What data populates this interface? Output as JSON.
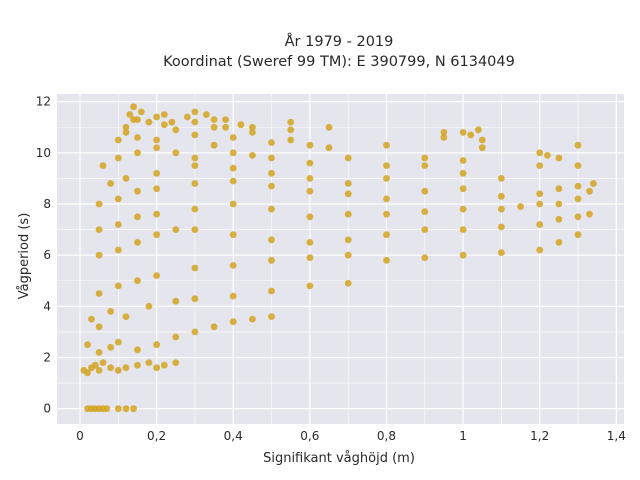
{
  "chart_data": {
    "type": "scatter",
    "title_lines": [
      "År 1979 - 2019",
      "Koordinat (Sweref 99 TM): E 390799, N 6134049"
    ],
    "xlabel": "Signifikant våghöjd (m)",
    "ylabel": "Vågperiod (s)",
    "xlim": [
      -0.06,
      1.42
    ],
    "ylim": [
      -0.6,
      12.3
    ],
    "x_ticks": [
      0,
      0.2,
      0.4,
      0.6,
      0.8,
      1,
      1.2,
      1.4
    ],
    "x_tick_labels": [
      "0",
      "0,2",
      "0,4",
      "0,6",
      "0,8",
      "1",
      "1,2",
      "1,4"
    ],
    "y_ticks": [
      0,
      2,
      4,
      6,
      8,
      10,
      12
    ],
    "y_tick_labels": [
      "0",
      "2",
      "4",
      "6",
      "8",
      "10",
      "12"
    ],
    "grid": true,
    "marker_color": "#d4a420",
    "background_color": "#e5e5ee",
    "series": [
      {
        "x": [
          0.02,
          0.03,
          0.04,
          0.05,
          0.06,
          0.07,
          0.1,
          0.12,
          0.14,
          0.01,
          0.02,
          0.03,
          0.04,
          0.05,
          0.06,
          0.08,
          0.1,
          0.12,
          0.15,
          0.18,
          0.2,
          0.22,
          0.25,
          0.02,
          0.05,
          0.08,
          0.1,
          0.15,
          0.2,
          0.25,
          0.3,
          0.35,
          0.4,
          0.45,
          0.5,
          0.03,
          0.05,
          0.08,
          0.12,
          0.18,
          0.25,
          0.3,
          0.4,
          0.5,
          0.6,
          0.7,
          0.05,
          0.1,
          0.15,
          0.2,
          0.3,
          0.4,
          0.5,
          0.6,
          0.7,
          0.8,
          0.9,
          1.0,
          1.1,
          1.2,
          1.25,
          1.3,
          0.05,
          0.1,
          0.15,
          0.2,
          0.25,
          0.3,
          0.4,
          0.5,
          0.6,
          0.7,
          0.8,
          0.9,
          1.0,
          1.1,
          1.2,
          1.25,
          1.3,
          1.33,
          0.05,
          0.1,
          0.15,
          0.2,
          0.3,
          0.4,
          0.5,
          0.6,
          0.7,
          0.8,
          0.9,
          1.0,
          1.1,
          1.15,
          1.2,
          1.25,
          1.3,
          1.33,
          1.34,
          0.05,
          0.1,
          0.15,
          0.2,
          0.3,
          0.4,
          0.5,
          0.6,
          0.7,
          0.8,
          0.9,
          1.0,
          1.1,
          1.2,
          1.25,
          1.3,
          0.08,
          0.12,
          0.2,
          0.3,
          0.4,
          0.5,
          0.6,
          0.7,
          0.8,
          0.9,
          1.0,
          1.1,
          1.2,
          1.25,
          1.3,
          0.06,
          0.1,
          0.15,
          0.2,
          0.25,
          0.3,
          0.35,
          0.4,
          0.45,
          0.5,
          0.6,
          0.7,
          0.8,
          0.9,
          1.0,
          1.05,
          1.2,
          1.22,
          1.3,
          0.1,
          0.12,
          0.15,
          0.2,
          0.25,
          0.3,
          0.35,
          0.4,
          0.45,
          0.5,
          0.55,
          0.6,
          0.65,
          0.8,
          0.95,
          1.0,
          1.04,
          0.12,
          0.14,
          0.18,
          0.22,
          0.28,
          0.3,
          0.35,
          0.38,
          0.42,
          0.55,
          0.65,
          0.95,
          1.02,
          1.05,
          0.13,
          0.15,
          0.2,
          0.24,
          0.3,
          0.33,
          0.38,
          0.45,
          0.55,
          0.14,
          0.16,
          0.22
        ],
        "y": [
          0,
          0,
          0,
          0,
          0,
          0,
          0,
          0,
          0,
          1.5,
          1.4,
          1.6,
          1.7,
          1.5,
          1.8,
          1.6,
          1.5,
          1.6,
          1.7,
          1.8,
          1.6,
          1.7,
          1.8,
          2.5,
          2.2,
          2.4,
          2.6,
          2.3,
          2.5,
          2.8,
          3.0,
          3.2,
          3.4,
          3.5,
          3.6,
          3.5,
          3.2,
          3.8,
          3.6,
          4.0,
          4.2,
          4.3,
          4.4,
          4.6,
          4.8,
          4.9,
          4.5,
          4.8,
          5.0,
          5.2,
          5.5,
          5.6,
          5.8,
          5.9,
          6.0,
          5.8,
          5.9,
          6.0,
          6.1,
          6.2,
          6.5,
          6.8,
          6.0,
          6.2,
          6.5,
          6.8,
          7.0,
          7.0,
          6.8,
          6.6,
          6.5,
          6.6,
          6.8,
          7.0,
          7.0,
          7.1,
          7.2,
          7.4,
          7.5,
          7.6,
          7.0,
          7.2,
          7.5,
          7.6,
          7.8,
          8.0,
          7.8,
          7.5,
          7.6,
          7.6,
          7.7,
          7.8,
          7.8,
          7.9,
          8.0,
          8.0,
          8.2,
          8.5,
          8.8,
          8.0,
          8.2,
          8.5,
          8.6,
          8.8,
          8.9,
          8.7,
          8.5,
          8.4,
          8.2,
          8.5,
          8.6,
          8.3,
          8.4,
          8.6,
          8.7,
          8.8,
          9.0,
          9.2,
          9.5,
          9.4,
          9.2,
          9.0,
          8.8,
          9.0,
          9.5,
          9.2,
          9.0,
          9.5,
          9.8,
          9.5,
          9.5,
          9.8,
          10.0,
          10.2,
          10.0,
          9.8,
          10.3,
          10.0,
          9.9,
          9.8,
          9.6,
          9.8,
          9.5,
          9.8,
          9.7,
          10.2,
          10.0,
          9.9,
          10.3,
          10.5,
          10.8,
          10.6,
          10.5,
          10.9,
          10.7,
          11.0,
          10.6,
          10.8,
          10.4,
          10.5,
          10.3,
          10.2,
          10.3,
          10.6,
          10.8,
          10.9,
          11.0,
          11.3,
          11.2,
          11.1,
          11.4,
          11.2,
          11.3,
          11.0,
          11.1,
          10.9,
          11.0,
          10.8,
          10.7,
          10.5,
          11.5,
          11.3,
          11.4,
          11.2,
          11.6,
          11.5,
          11.3,
          11.0,
          11.2,
          11.8,
          11.6,
          11.5
        ]
      }
    ]
  }
}
